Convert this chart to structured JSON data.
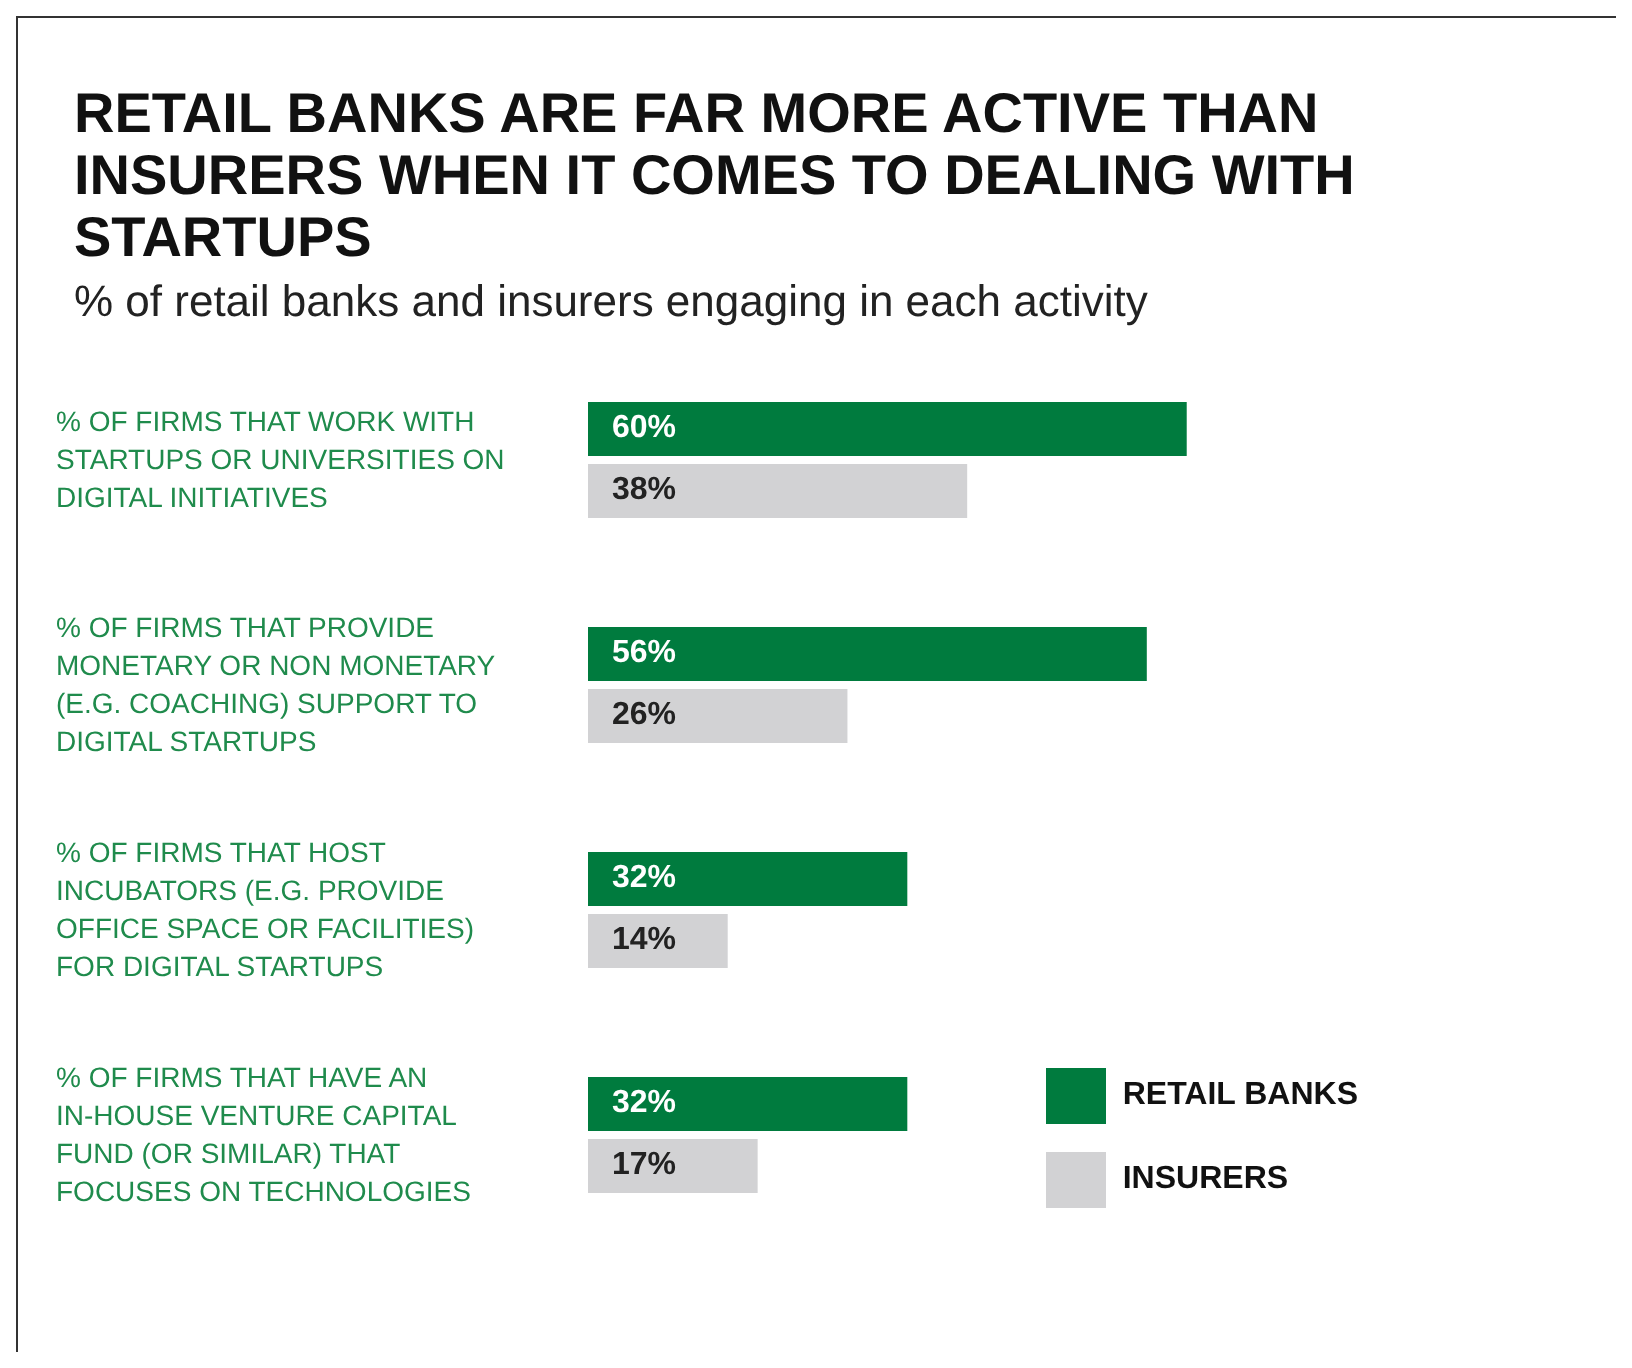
{
  "chart_data": {
    "type": "bar",
    "orientation": "horizontal",
    "title": "RETAIL BANKS ARE FAR MORE ACTIVE THAN INSURERS WHEN IT COMES TO DEALING WITH STARTUPS",
    "subtitle": "% of retail banks and insurers engaging in each activity",
    "categories": [
      "% OF FIRMS THAT WORK WITH STARTUPS OR UNIVERSITIES ON DIGITAL INITIATIVES",
      "% OF FIRMS THAT PROVIDE MONETARY OR NON MONETARY (E.G. COACHING) SUPPORT TO DIGITAL STARTUPS",
      "% OF FIRMS THAT HOST INCUBATORS (E.G. PROVIDE OFFICE SPACE OR FACILITIES) FOR DIGITAL STARTUPS",
      "% OF FIRMS THAT HAVE AN IN-HOUSE VENTURE CAPITAL FUND (OR SIMILAR) THAT FOCUSES ON TECHNOLOGIES"
    ],
    "series": [
      {
        "name": "RETAIL BANKS",
        "color": "#007b3e",
        "values": [
          60,
          56,
          32,
          32
        ],
        "value_labels": [
          "60%",
          "56%",
          "32%",
          "32%"
        ]
      },
      {
        "name": "INSURERS",
        "color": "#d2d2d4",
        "values": [
          38,
          26,
          14,
          17
        ],
        "value_labels": [
          "38%",
          "26%",
          "14%",
          "17%"
        ]
      }
    ],
    "legend": "bottom right"
  }
}
